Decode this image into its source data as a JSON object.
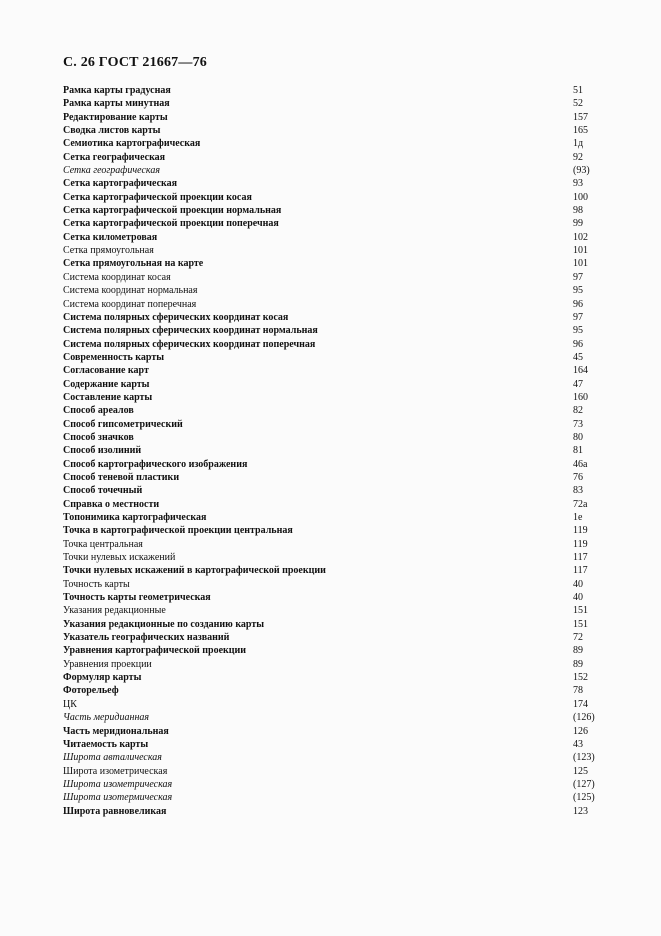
{
  "header": {
    "title": "С. 26 ГОСТ 21667—76"
  },
  "entries": [
    {
      "term": "Рамка карты градусная",
      "page": "51",
      "style": "b"
    },
    {
      "term": "Рамка карты минутная",
      "page": "52",
      "style": "b"
    },
    {
      "term": "Редактирование карты",
      "page": "157",
      "style": "b"
    },
    {
      "term": "Сводка листов карты",
      "page": "165",
      "style": "b"
    },
    {
      "term": "Семиотика картографическая",
      "page": "1д",
      "style": "b"
    },
    {
      "term": "Сетка географическая",
      "page": "92",
      "style": "b"
    },
    {
      "term": "Сетка географическая",
      "page": "(93)",
      "style": "i"
    },
    {
      "term": "Сетка картографическая",
      "page": "93",
      "style": "b"
    },
    {
      "term": "Сетка картографической проекции косая",
      "page": "100",
      "style": "b"
    },
    {
      "term": "Сетка картографической проекции нормальная",
      "page": "98",
      "style": "b"
    },
    {
      "term": "Сетка картографической проекции поперечная",
      "page": "99",
      "style": "b"
    },
    {
      "term": "Сетка километровая",
      "page": "102",
      "style": "b"
    },
    {
      "term": "Сетка прямоугольная",
      "page": "101",
      "style": "r"
    },
    {
      "term": "Сетка прямоугольная на карте",
      "page": "101",
      "style": "b"
    },
    {
      "term": "Система координат косая",
      "page": "97",
      "style": "r"
    },
    {
      "term": "Система координат нормальная",
      "page": "95",
      "style": "r"
    },
    {
      "term": "Система координат поперечная",
      "page": "96",
      "style": "r"
    },
    {
      "term": "Система полярных сферических координат косая",
      "page": "97",
      "style": "b"
    },
    {
      "term": "Система полярных сферических координат нормальная",
      "page": "95",
      "style": "b"
    },
    {
      "term": "Система полярных сферических координат поперечная",
      "page": "96",
      "style": "b"
    },
    {
      "term": "Современность карты",
      "page": "45",
      "style": "b"
    },
    {
      "term": "Согласование карт",
      "page": "164",
      "style": "b"
    },
    {
      "term": "Содержание карты",
      "page": "47",
      "style": "b"
    },
    {
      "term": "Составление карты",
      "page": "160",
      "style": "b"
    },
    {
      "term": "Способ ареалов",
      "page": "82",
      "style": "b"
    },
    {
      "term": "Способ гипсометрический",
      "page": "73",
      "style": "b"
    },
    {
      "term": "Способ значков",
      "page": "80",
      "style": "b"
    },
    {
      "term": "Способ изолиний",
      "page": "81",
      "style": "b"
    },
    {
      "term": "Способ картографического изображения",
      "page": "46а",
      "style": "b"
    },
    {
      "term": "Способ теневой пластики",
      "page": "76",
      "style": "b"
    },
    {
      "term": "Способ точечный",
      "page": "83",
      "style": "b"
    },
    {
      "term": "Справка о местности",
      "page": "72а",
      "style": "b"
    },
    {
      "term": "Топонимика картографическая",
      "page": "1е",
      "style": "b"
    },
    {
      "term": "Точка в картографической проекции центральная",
      "page": "119",
      "style": "b"
    },
    {
      "term": "Точка центральная",
      "page": "119",
      "style": "r"
    },
    {
      "term": "Точки нулевых искажений",
      "page": "117",
      "style": "r"
    },
    {
      "term": "Точки нулевых искажений в картографической проекции",
      "page": "117",
      "style": "b"
    },
    {
      "term": "Точность карты",
      "page": "40",
      "style": "r"
    },
    {
      "term": "Точность карты геометрическая",
      "page": "40",
      "style": "b"
    },
    {
      "term": "Указания редакционные",
      "page": "151",
      "style": "r"
    },
    {
      "term": "Указания редакционные по созданию карты",
      "page": "151",
      "style": "b"
    },
    {
      "term": "Указатель географических названий",
      "page": "72",
      "style": "b"
    },
    {
      "term": "Уравнения картографической проекции",
      "page": "89",
      "style": "b"
    },
    {
      "term": "Уравнения проекции",
      "page": "89",
      "style": "r"
    },
    {
      "term": "Формуляр карты",
      "page": "152",
      "style": "b"
    },
    {
      "term": "Фоторельеф",
      "page": "78",
      "style": "b"
    },
    {
      "term": "ЦК",
      "page": "174",
      "style": "r"
    },
    {
      "term": "Часть меридианная",
      "page": "(126)",
      "style": "i"
    },
    {
      "term": "Часть меридиональная",
      "page": "126",
      "style": "b"
    },
    {
      "term": "Читаемость карты",
      "page": "43",
      "style": "b"
    },
    {
      "term": "Широта авталическая",
      "page": "(123)",
      "style": "i"
    },
    {
      "term": "Широта изометрическая",
      "page": "125",
      "style": "r"
    },
    {
      "term": "Широта изометрическая",
      "page": "(127)",
      "style": "i"
    },
    {
      "term": "Широта изотермическая",
      "page": "(125)",
      "style": "i"
    },
    {
      "term": "Широта равновеликая",
      "page": "123",
      "style": "b"
    }
  ]
}
